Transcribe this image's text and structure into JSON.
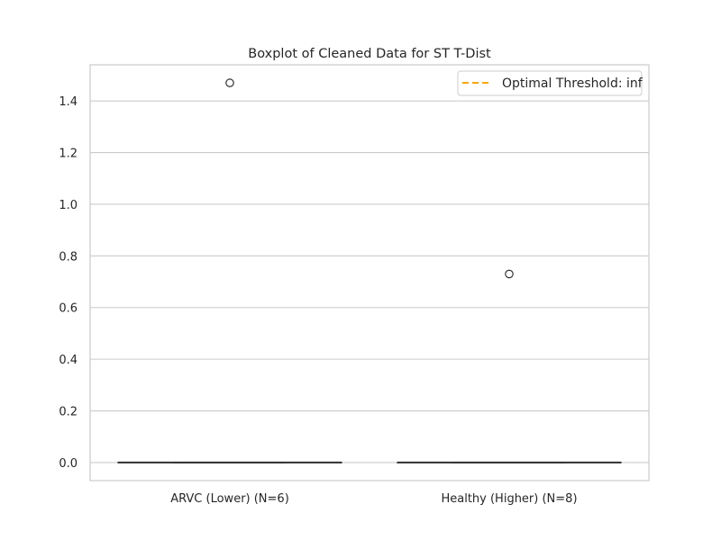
{
  "chart_data": {
    "type": "box",
    "title": "Boxplot of Cleaned Data for ST T-Dist",
    "xlabel": "",
    "ylabel": "",
    "ylim": [
      -0.07,
      1.54
    ],
    "yticks": [
      0.0,
      0.2,
      0.4,
      0.6,
      0.8,
      1.0,
      1.2,
      1.4
    ],
    "ytick_labels": [
      "0.0",
      "0.2",
      "0.4",
      "0.6",
      "0.8",
      "1.0",
      "1.2",
      "1.4"
    ],
    "grid": true,
    "categories": [
      "ARVC (Lower) (N=6)",
      "Healthy (Higher) (N=8)"
    ],
    "boxes": [
      {
        "category": "ARVC (Lower) (N=6)",
        "whisker_low": 0.0,
        "q1": 0.0,
        "median": 0.0,
        "q3": 0.0,
        "whisker_high": 0.0,
        "outliers": [
          1.47
        ]
      },
      {
        "category": "Healthy (Higher) (N=8)",
        "whisker_low": 0.0,
        "q1": 0.0,
        "median": 0.0,
        "q3": 0.0,
        "whisker_high": 0.0,
        "outliers": [
          0.73
        ]
      }
    ],
    "legend": {
      "placement": "top-right",
      "entries": [
        {
          "label": "Optimal Threshold: inf",
          "color": "#ffa500",
          "style": "dashed"
        }
      ]
    },
    "colors": {
      "grid": "#cccccc",
      "axes_edge": "#cccccc",
      "box_line": "#333333",
      "text": "#262626"
    }
  }
}
